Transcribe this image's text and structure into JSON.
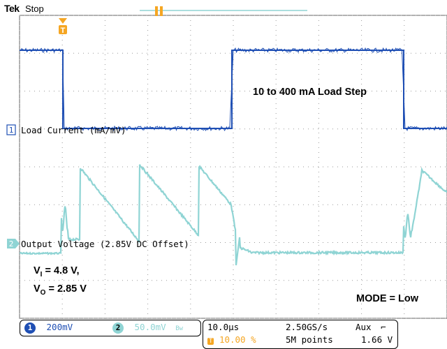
{
  "header": {
    "brand": "Tek",
    "acquisition_state": "Stop"
  },
  "annotations": {
    "load_step": "10 to 400 mA Load Step",
    "vin_prefix": "V",
    "vin_sub": "I",
    "vin_value": " = 4.8 V,",
    "vout_prefix": "V",
    "vout_sub": "O",
    "vout_value": " = 2.85 V",
    "mode": "MODE = Low"
  },
  "channels": [
    {
      "number": "1",
      "label": "Load Current (mA/mV)",
      "scale": "200mV",
      "color": "#1f4fb4"
    },
    {
      "number": "2",
      "label": "Output Voltage (2.85V DC Offset)",
      "scale": "50.0mV",
      "bandwidth_symbol": "Bw",
      "color": "#8fd4d4"
    }
  ],
  "timebase": {
    "horizontal_scale": "10.0µs",
    "trigger_position": "10.00 %",
    "sample_rate": "2.50GS/s",
    "record_length": "5M points"
  },
  "trigger": {
    "source": "Aux",
    "slope_symbol": "⌐",
    "level": "1.66 V",
    "marker_label": "T"
  },
  "colors": {
    "ch1": "#1f4fb4",
    "ch2": "#8fd4d4",
    "trigger": "#f5a623",
    "grid": "#9a9a9a"
  }
}
